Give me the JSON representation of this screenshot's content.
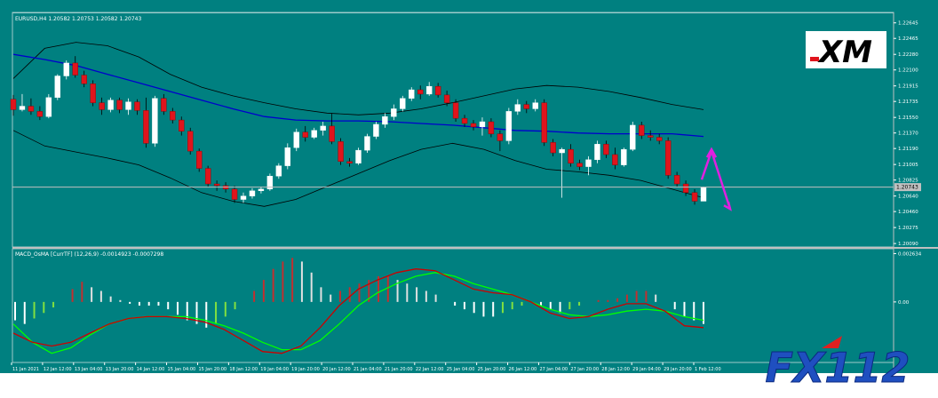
{
  "colors": {
    "background": "#008080",
    "bull_candle": "#ffffff",
    "bear_candle": "#e0141c",
    "bollinger": "#000000",
    "moving_average": "#0000cc",
    "price_line": "#c0c0c0",
    "macd_signal": "#00ff00",
    "macd_main": "#cc0000",
    "osma_positive": "#c03030",
    "osma_negative": "#80e040",
    "arrow": "#e020e0",
    "axis_text": "#ffffff",
    "fx112_blue": "#1f4fc0",
    "fx112_red": "#e02020"
  },
  "chart_data": [
    {
      "type": "candlestick",
      "title": "EURUSD,H4  1.20582 1.20753 1.20582 1.20743",
      "symbol": "EURUSD",
      "timeframe": "H4",
      "ohlc_readout": [
        1.20582,
        1.20753,
        1.20582,
        1.20743
      ],
      "current_price": 1.20743,
      "current_price_label": "1.20743",
      "ylim": [
        1.2005,
        1.22745
      ],
      "y_ticks": [
        "1.22645",
        "1.22465",
        "1.22280",
        "1.22100",
        "1.21915",
        "1.21735",
        "1.21550",
        "1.21370",
        "1.21190",
        "1.21005",
        "1.20825",
        "1.20640",
        "1.20460",
        "1.20275",
        "1.20090"
      ],
      "y_tick_values": [
        1.22645,
        1.22465,
        1.2228,
        1.221,
        1.21915,
        1.21735,
        1.2155,
        1.2137,
        1.2119,
        1.21005,
        1.20825,
        1.2064,
        1.2046,
        1.20275,
        1.2009
      ],
      "grid": false,
      "legend": "none",
      "candles": [
        [
          1.2176,
          1.2181,
          1.2157,
          1.2164
        ],
        [
          1.2164,
          1.2182,
          1.2162,
          1.2168
        ],
        [
          1.2168,
          1.2177,
          1.2158,
          1.2162
        ],
        [
          1.2162,
          1.2168,
          1.2152,
          1.2156
        ],
        [
          1.2156,
          1.2182,
          1.2154,
          1.2178
        ],
        [
          1.2178,
          1.2205,
          1.2175,
          1.2203
        ],
        [
          1.2203,
          1.2221,
          1.2199,
          1.2218
        ],
        [
          1.2218,
          1.2226,
          1.2201,
          1.2204
        ],
        [
          1.2204,
          1.2209,
          1.219,
          1.2194
        ],
        [
          1.2194,
          1.2198,
          1.2168,
          1.2172
        ],
        [
          1.2172,
          1.2178,
          1.2158,
          1.2164
        ],
        [
          1.2164,
          1.2178,
          1.2161,
          1.2175
        ],
        [
          1.2175,
          1.2178,
          1.216,
          1.2164
        ],
        [
          1.2164,
          1.2177,
          1.2158,
          1.2173
        ],
        [
          1.2173,
          1.2176,
          1.2158,
          1.2163
        ],
        [
          1.2163,
          1.2178,
          1.212,
          1.2125
        ],
        [
          1.2125,
          1.218,
          1.2121,
          1.2177
        ],
        [
          1.2177,
          1.2182,
          1.2158,
          1.2162
        ],
        [
          1.2162,
          1.2166,
          1.2148,
          1.2152
        ],
        [
          1.2152,
          1.2156,
          1.2134,
          1.2139
        ],
        [
          1.2139,
          1.2143,
          1.2112,
          1.2116
        ],
        [
          1.2116,
          1.2119,
          1.2092,
          1.2096
        ],
        [
          1.2096,
          1.2099,
          1.2074,
          1.2078
        ],
        [
          1.2078,
          1.2082,
          1.207,
          1.2076
        ],
        [
          1.2076,
          1.208,
          1.2068,
          1.2072
        ],
        [
          1.2072,
          1.2076,
          1.2056,
          1.206
        ],
        [
          1.206,
          1.2068,
          1.2056,
          1.2064
        ],
        [
          1.2064,
          1.2073,
          1.2061,
          1.207
        ],
        [
          1.207,
          1.2075,
          1.2067,
          1.2072
        ],
        [
          1.2072,
          1.209,
          1.207,
          1.2087
        ],
        [
          1.2087,
          1.2102,
          1.2084,
          1.2099
        ],
        [
          1.2099,
          1.2125,
          1.2095,
          1.212
        ],
        [
          1.212,
          1.2142,
          1.2116,
          1.2138
        ],
        [
          1.2138,
          1.2145,
          1.2127,
          1.2132
        ],
        [
          1.2132,
          1.2143,
          1.213,
          1.214
        ],
        [
          1.214,
          1.215,
          1.2134,
          1.2145
        ],
        [
          1.2145,
          1.216,
          1.2124,
          1.2127
        ],
        [
          1.2127,
          1.2131,
          1.21,
          1.2104
        ],
        [
          1.2104,
          1.2108,
          1.2098,
          1.2102
        ],
        [
          1.2102,
          1.212,
          1.21,
          1.2117
        ],
        [
          1.2117,
          1.2136,
          1.2114,
          1.2133
        ],
        [
          1.2133,
          1.215,
          1.213,
          1.2147
        ],
        [
          1.2147,
          1.216,
          1.2143,
          1.2156
        ],
        [
          1.2156,
          1.217,
          1.2152,
          1.2165
        ],
        [
          1.2165,
          1.218,
          1.2162,
          1.2177
        ],
        [
          1.2177,
          1.219,
          1.2174,
          1.2187
        ],
        [
          1.2187,
          1.2192,
          1.2176,
          1.2182
        ],
        [
          1.2182,
          1.2196,
          1.218,
          1.2191
        ],
        [
          1.2191,
          1.2195,
          1.2178,
          1.2181
        ],
        [
          1.2181,
          1.2186,
          1.2168,
          1.2172
        ],
        [
          1.2172,
          1.2176,
          1.215,
          1.2154
        ],
        [
          1.2154,
          1.2158,
          1.2144,
          1.2148
        ],
        [
          1.2148,
          1.2152,
          1.214,
          1.2144
        ],
        [
          1.2144,
          1.2155,
          1.2134,
          1.215
        ],
        [
          1.215,
          1.2154,
          1.2132,
          1.2136
        ],
        [
          1.2136,
          1.214,
          1.2116,
          1.2128
        ],
        [
          1.2128,
          1.2166,
          1.2124,
          1.2162
        ],
        [
          1.2162,
          1.2176,
          1.2158,
          1.217
        ],
        [
          1.217,
          1.2174,
          1.216,
          1.2165
        ],
        [
          1.2165,
          1.2176,
          1.2162,
          1.2172
        ],
        [
          1.2172,
          1.2176,
          1.2122,
          1.2126
        ],
        [
          1.2126,
          1.213,
          1.211,
          1.2114
        ],
        [
          1.2114,
          1.212,
          1.2062,
          1.2118
        ],
        [
          1.2118,
          1.2124,
          1.2098,
          1.2102
        ],
        [
          1.2102,
          1.2106,
          1.2094,
          1.2098
        ],
        [
          1.2098,
          1.211,
          1.2088,
          1.2106
        ],
        [
          1.2106,
          1.2128,
          1.2102,
          1.2124
        ],
        [
          1.2124,
          1.2128,
          1.2108,
          1.2112
        ],
        [
          1.2112,
          1.212,
          1.2095,
          1.21
        ],
        [
          1.21,
          1.212,
          1.2098,
          1.2118
        ],
        [
          1.2118,
          1.215,
          1.2116,
          1.2146
        ],
        [
          1.2146,
          1.215,
          1.213,
          1.2134
        ],
        [
          1.2134,
          1.214,
          1.2128,
          1.2132
        ],
        [
          1.2132,
          1.2136,
          1.2124,
          1.2128
        ],
        [
          1.2128,
          1.2132,
          1.2084,
          1.2088
        ],
        [
          1.2088,
          1.2092,
          1.2074,
          1.2078
        ],
        [
          1.2078,
          1.2082,
          1.2064,
          1.2068
        ],
        [
          1.2068,
          1.2072,
          1.2054,
          1.2058
        ],
        [
          1.2058,
          1.2075,
          1.2058,
          1.2074
        ]
      ],
      "bollinger_upper": [
        1.22,
        1.2235,
        1.2242,
        1.2238,
        1.2225,
        1.2205,
        1.219,
        1.218,
        1.2172,
        1.2165,
        1.216,
        1.2158,
        1.216,
        1.2165,
        1.2172,
        1.218,
        1.2188,
        1.2192,
        1.219,
        1.2185,
        1.2178,
        1.217,
        1.2164
      ],
      "bollinger_lower": [
        1.214,
        1.2122,
        1.2115,
        1.2108,
        1.21,
        1.2085,
        1.2068,
        1.2058,
        1.2052,
        1.206,
        1.2075,
        1.209,
        1.2105,
        1.2118,
        1.2125,
        1.2118,
        1.2105,
        1.2095,
        1.2092,
        1.2088,
        1.2082,
        1.2072,
        1.2062
      ],
      "moving_average": [
        1.2228,
        1.2222,
        1.2215,
        1.2205,
        1.2195,
        1.2185,
        1.2175,
        1.2165,
        1.2156,
        1.2152,
        1.2151,
        1.2151,
        1.215,
        1.2148,
        1.2146,
        1.2143,
        1.214,
        1.2139,
        1.2137,
        1.2136,
        1.2136,
        1.2136,
        1.2133
      ],
      "annotation_arrow": [
        1.2083,
        1.2116,
        1.2049
      ]
    },
    {
      "type": "bar",
      "title": "MACD_OsMA [CurrTF] (12,26,9) -0.0014923 -0.0007298",
      "indicator": "MACD_OsMA",
      "period": "CurrTF",
      "params": [
        12,
        26,
        9
      ],
      "readout": [
        -0.0014923,
        -0.0007298
      ],
      "ylim": [
        -0.0032,
        0.0028
      ],
      "y_ticks": [
        "0.002634",
        "0.00"
      ],
      "y_tick_values": [
        0.002634,
        0.0
      ],
      "osma": [
        -0.001,
        -0.0012,
        -0.0009,
        -0.0006,
        -0.0003,
        0.0,
        0.0007,
        0.0011,
        0.0008,
        0.0006,
        0.0003,
        0.0001,
        -0.0001,
        -0.0002,
        -0.0002,
        -0.0002,
        -0.0004,
        -0.0007,
        -0.001,
        -0.0012,
        -0.0014,
        -0.0012,
        -0.0008,
        -0.0004,
        0.0,
        0.0006,
        0.0012,
        0.0018,
        0.0022,
        0.0024,
        0.0022,
        0.0016,
        0.0008,
        0.0004,
        0.0006,
        0.0008,
        0.001,
        0.0012,
        0.0014,
        0.0014,
        0.0012,
        0.001,
        0.0008,
        0.0006,
        0.0004,
        0.0,
        -0.0002,
        -0.0004,
        -0.0006,
        -0.0008,
        -0.0008,
        -0.0006,
        -0.0004,
        -0.0002,
        0.0,
        -0.0002,
        -0.0004,
        -0.0006,
        -0.0004,
        -0.0002,
        0.0,
        0.0001,
        0.0001,
        0.0002,
        0.0004,
        0.0006,
        0.0006,
        0.0004,
        0.0,
        -0.0004,
        -0.0008,
        -0.001,
        -0.0012
      ],
      "macd_main": [
        -0.0017,
        -0.0022,
        -0.0024,
        -0.0022,
        -0.0017,
        -0.0012,
        -0.0009,
        -0.0008,
        -0.0008,
        -0.0009,
        -0.0011,
        -0.0015,
        -0.0021,
        -0.0027,
        -0.0028,
        -0.0024,
        -0.0014,
        -0.0002,
        0.0007,
        0.0012,
        0.0016,
        0.0018,
        0.0017,
        0.0012,
        0.0007,
        0.0005,
        0.0004,
        0.0,
        -0.0006,
        -0.0009,
        -0.0008,
        -0.0004,
        -0.0001,
        -0.0001,
        -0.0005,
        -0.0013,
        -0.0014
      ],
      "macd_signal": [
        -0.0012,
        -0.0022,
        -0.0028,
        -0.0025,
        -0.0018,
        -0.0012,
        -0.0009,
        -0.0008,
        -0.0008,
        -0.0008,
        -0.001,
        -0.0013,
        -0.0017,
        -0.0022,
        -0.0026,
        -0.0026,
        -0.0021,
        -0.0012,
        -0.0002,
        0.0005,
        0.001,
        0.0014,
        0.0016,
        0.0014,
        0.001,
        0.0007,
        0.0004,
        0.0,
        -0.0004,
        -0.0007,
        -0.0008,
        -0.0007,
        -0.0005,
        -0.0004,
        -0.0005,
        -0.0008,
        -0.001
      ],
      "x_labels": [
        "11 Jan 2021",
        "12 Jan 12:00",
        "13 Jan 04:00",
        "13 Jan 20:00",
        "14 Jan 12:00",
        "15 Jan 04:00",
        "15 Jan 20:00",
        "18 Jan 12:00",
        "19 Jan 04:00",
        "19 Jan 20:00",
        "20 Jan 12:00",
        "21 Jan 04:00",
        "21 Jan 20:00",
        "22 Jan 12:00",
        "25 Jan 04:00",
        "25 Jan 20:00",
        "26 Jan 12:00",
        "27 Jan 04:00",
        "27 Jan 20:00",
        "28 Jan 12:00",
        "29 Jan 04:00",
        "29 Jan 20:00",
        "1 Feb 12:00"
      ]
    }
  ],
  "logos": {
    "xm": "XM",
    "fx112": "FX112"
  }
}
